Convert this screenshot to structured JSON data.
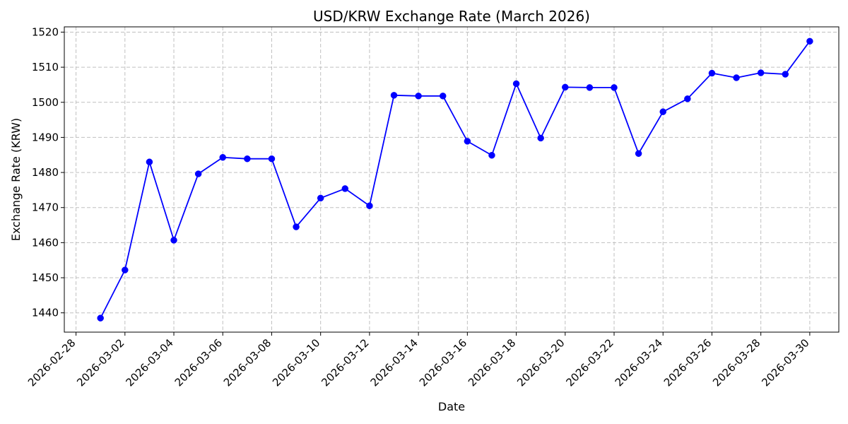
{
  "chart_data": {
    "type": "line",
    "title": "USD/KRW Exchange Rate (March 2026)",
    "xlabel": "Date",
    "ylabel": "Exchange Rate (KRW)",
    "x_tick_labels": [
      "2026-02-28",
      "2026-03-02",
      "2026-03-04",
      "2026-03-06",
      "2026-03-08",
      "2026-03-10",
      "2026-03-12",
      "2026-03-14",
      "2026-03-16",
      "2026-03-18",
      "2026-03-20",
      "2026-03-22",
      "2026-03-24",
      "2026-03-26",
      "2026-03-28",
      "2026-03-30"
    ],
    "y_ticks": [
      1440,
      1450,
      1460,
      1470,
      1480,
      1490,
      1500,
      1510,
      1520
    ],
    "xlim": [
      "2026-02-27T12:30",
      "2026-03-31T04:30"
    ],
    "ylim": [
      1434.5,
      1521.5
    ],
    "grid": true,
    "line_color": "#0000ff",
    "grid_color": "#c0c0c0",
    "x": [
      "2026-03-01",
      "2026-03-02",
      "2026-03-03",
      "2026-03-04",
      "2026-03-05",
      "2026-03-06",
      "2026-03-07",
      "2026-03-08",
      "2026-03-09",
      "2026-03-10",
      "2026-03-11",
      "2026-03-12",
      "2026-03-13",
      "2026-03-14",
      "2026-03-15",
      "2026-03-16",
      "2026-03-17",
      "2026-03-18",
      "2026-03-19",
      "2026-03-20",
      "2026-03-21",
      "2026-03-22",
      "2026-03-23",
      "2026-03-24",
      "2026-03-25",
      "2026-03-26",
      "2026-03-27",
      "2026-03-28",
      "2026-03-29",
      "2026-03-30"
    ],
    "values": [
      1438.5,
      1452.2,
      1483.0,
      1460.7,
      1479.6,
      1484.3,
      1483.9,
      1483.9,
      1464.5,
      1472.7,
      1475.4,
      1470.5,
      1502.0,
      1501.8,
      1501.8,
      1488.9,
      1484.9,
      1505.3,
      1489.8,
      1504.3,
      1504.2,
      1504.2,
      1485.4,
      1497.3,
      1501.0,
      1508.3,
      1507.0,
      1508.4,
      1508.0,
      1517.4
    ]
  }
}
